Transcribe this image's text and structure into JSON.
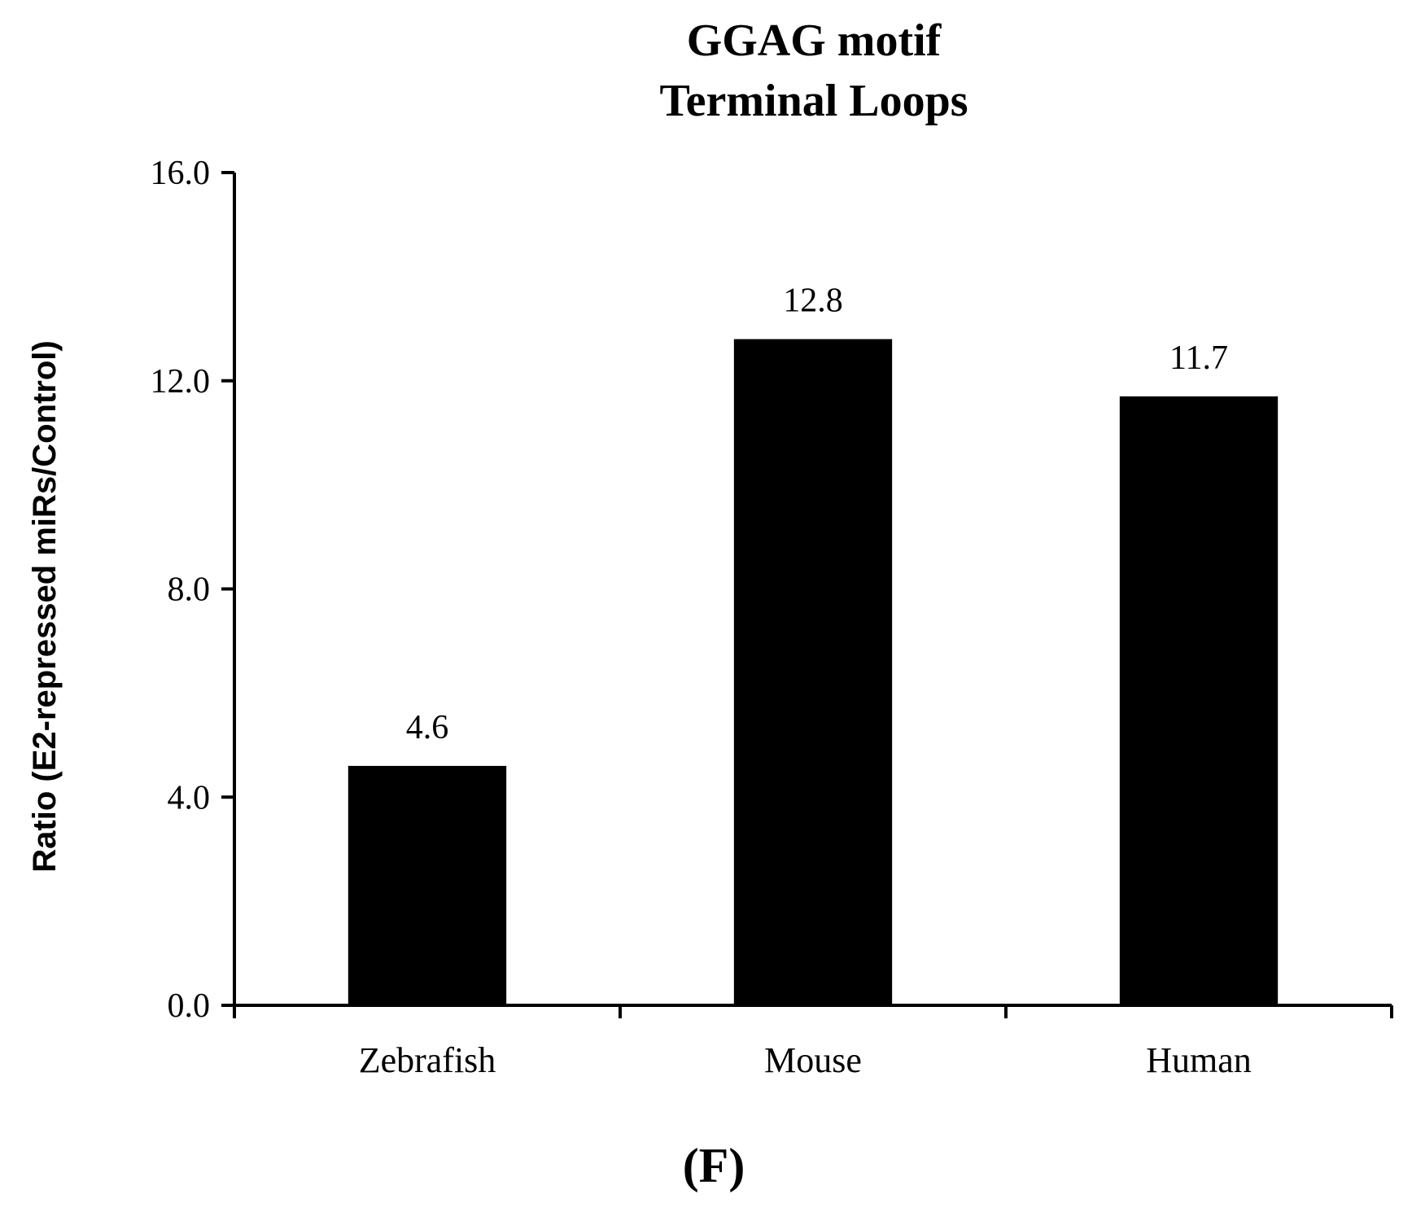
{
  "chart_data": {
    "type": "bar",
    "title": [
      "GGAG motif",
      "Terminal Loops"
    ],
    "ylabel": "Ratio (E2-repressed miRs/Control)",
    "xlabel": "",
    "categories": [
      "Zebrafish",
      "Mouse",
      "Human"
    ],
    "values": [
      4.6,
      12.8,
      11.7
    ],
    "data_labels": [
      "4.6",
      "12.8",
      "11.7"
    ],
    "ylim": [
      0,
      16
    ],
    "yticks": [
      0,
      4,
      8,
      12,
      16
    ],
    "ytick_labels": [
      "0.0",
      "4.0",
      "8.0",
      "12.0",
      "16.0"
    ],
    "bar_color": "#000000",
    "grid": false,
    "legend": "none"
  },
  "panel_label": "(F)"
}
